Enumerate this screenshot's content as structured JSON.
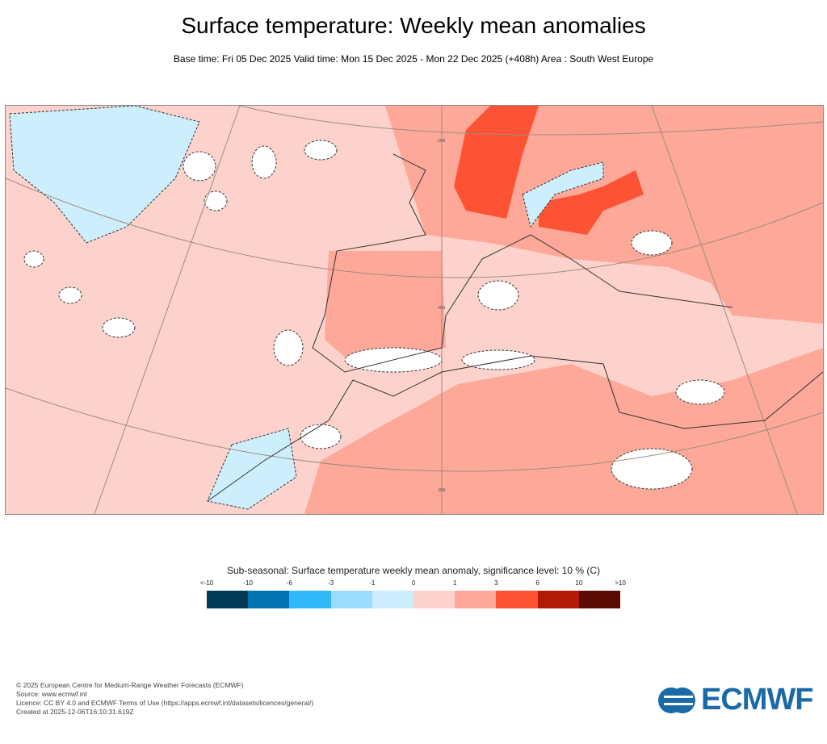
{
  "title": "Surface temperature: Weekly mean anomalies",
  "subtitle": "Base time: Fri 05 Dec 2025 Valid time: Mon 15 Dec 2025 - Mon 22 Dec 2025 (+408h) Area : South West Europe",
  "map": {
    "lat_labels": [
      "50N",
      "40N",
      "30N"
    ],
    "significance": "dashed contours mark non-significant regions"
  },
  "colorbar": {
    "title": "Sub-seasonal: Surface temperature weekly mean anomaly, significance level: 10 % (C)",
    "ticks": [
      "<-10",
      "-10",
      "-6",
      "-3",
      "-1",
      "0",
      "1",
      "3",
      "6",
      "10",
      ">10"
    ],
    "colors": [
      "#003a55",
      "#0073b0",
      "#2fb9fb",
      "#9cdcfd",
      "#cdeefd",
      "#fdd2cc",
      "#fda898",
      "#fd5233",
      "#b11a05",
      "#5a0c03"
    ]
  },
  "footer": [
    "© 2025 European Centre for Medium-Range Weather Forecasts (ECMWF)",
    "Source: www.ecmwf.int",
    "Licence: CC BY 4.0 and ECMWF Terms of Use (https://apps.ecmwf.int/datasets/licences/general/)",
    "Created at 2025-12-06T16:10:31.619Z"
  ],
  "logo": "ECMWF"
}
